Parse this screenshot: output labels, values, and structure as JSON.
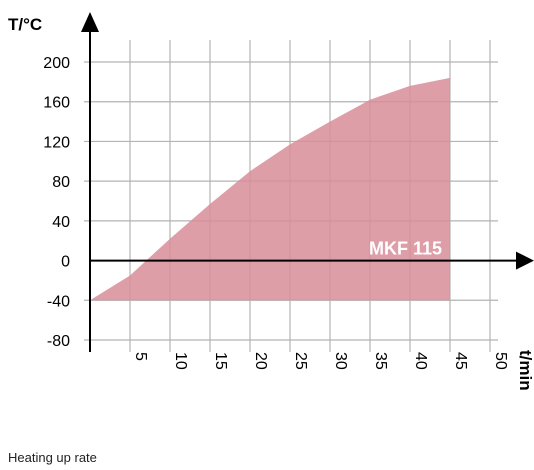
{
  "chart_data": {
    "type": "area",
    "ylabel": "T/°C",
    "xlabel": "t/min",
    "series_label": "MKF 115",
    "x_ticks": [
      "5",
      "10",
      "15",
      "20",
      "25",
      "30",
      "35",
      "40",
      "45",
      "50"
    ],
    "y_ticks": [
      "200",
      "160",
      "120",
      "80",
      "40",
      "0",
      "-40",
      "-80"
    ],
    "xlim": [
      0,
      50
    ],
    "ylim": [
      -80,
      200
    ],
    "grid": true,
    "series": [
      {
        "x": [
          0,
          5,
          10,
          15,
          20,
          25,
          30,
          35,
          40,
          45
        ],
        "y": [
          -40,
          -15,
          22,
          57,
          90,
          117,
          140,
          162,
          176,
          184
        ],
        "baseline": -40
      }
    ],
    "colors": {
      "fill": "#d88d99",
      "grid": "#b3b3b3",
      "axis": "#000000"
    }
  },
  "caption": "Heating up rate"
}
